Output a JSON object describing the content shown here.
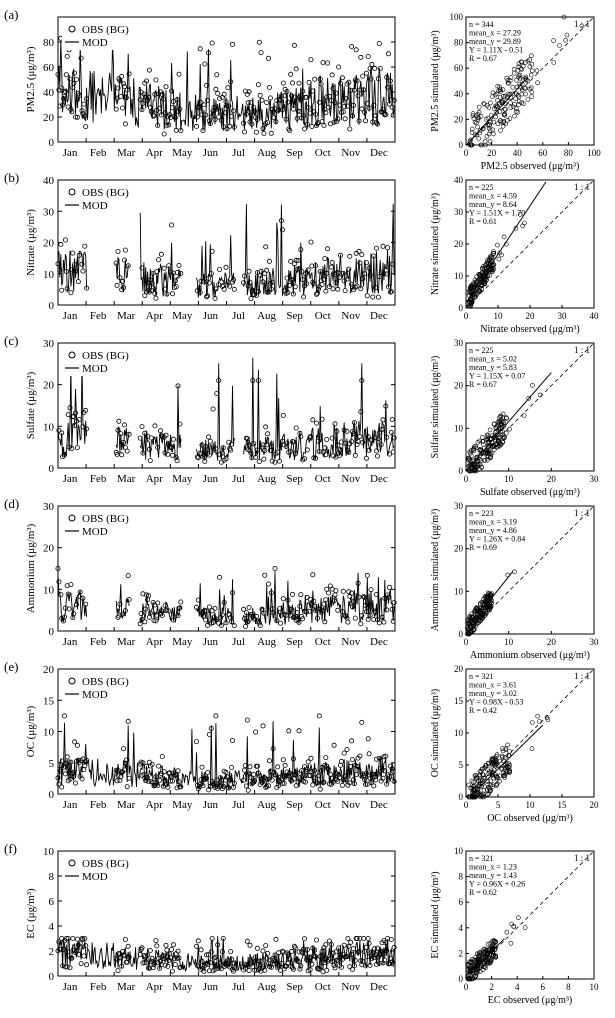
{
  "figure": {
    "months": [
      "Jan",
      "Feb",
      "Mar",
      "Apr",
      "May",
      "Jun",
      "Jul",
      "Aug",
      "Sep",
      "Oct",
      "Nov",
      "Dec"
    ],
    "legend": {
      "obs": "OBS (BG)",
      "mod": "MOD"
    },
    "one_to_one_label": "1 : 1"
  },
  "chart_data": [
    {
      "type": "line",
      "panel": "(a)",
      "ylabel": "PM2.5 (μg/m³)",
      "ylim": [
        0,
        100
      ],
      "yticks": [
        0,
        20,
        40,
        60,
        80
      ],
      "series": [
        {
          "name": "OBS (BG)",
          "kind": "markers",
          "range": [
            5,
            83
          ],
          "mean": 27.29
        },
        {
          "name": "MOD",
          "kind": "line",
          "range": [
            3,
            82
          ],
          "mean": 29.89
        }
      ],
      "scatter": {
        "xlabel": "PM2.5 observed (μg/m³)",
        "ylabel": "PM2.5 simulated (μg/m³)",
        "lim": [
          0,
          100
        ],
        "ticks": [
          0,
          20,
          40,
          60,
          80,
          100
        ],
        "stats": [
          "n = 344",
          "mean_x = 27.29",
          "mean_y = 29.89",
          "Y = 1.11X - 0.51",
          "R = 0.67"
        ],
        "fit": {
          "slope": 1.11,
          "intercept": -0.51,
          "x_end": 45
        }
      }
    },
    {
      "type": "line",
      "panel": "(b)",
      "ylabel": "Nitrate (μg/m³)",
      "ylim": [
        0,
        40
      ],
      "yticks": [
        0,
        10,
        20,
        30,
        40
      ],
      "series": [
        {
          "name": "OBS (BG)",
          "kind": "markers",
          "range": [
            0,
            27
          ],
          "mean": 4.59
        },
        {
          "name": "MOD",
          "kind": "line",
          "range": [
            0,
            33
          ],
          "mean": 8.64
        }
      ],
      "scatter": {
        "xlabel": "Nitrate observed (μg/m³)",
        "ylabel": "Nitrate simulated (μg/m³)",
        "lim": [
          0,
          40
        ],
        "ticks": [
          0,
          10,
          20,
          30,
          40
        ],
        "stats": [
          "n = 225",
          "mean_x = 4.59",
          "mean_y = 8.64",
          "Y = 1.51X + 1.70",
          "R = 0.61"
        ],
        "fit": {
          "slope": 1.51,
          "intercept": 1.7,
          "x_end": 25
        }
      }
    },
    {
      "type": "line",
      "panel": "(c)",
      "ylabel": "Sulfate (μg/m³)",
      "ylim": [
        0,
        30
      ],
      "yticks": [
        0,
        10,
        20,
        30
      ],
      "series": [
        {
          "name": "OBS (BG)",
          "kind": "markers",
          "range": [
            0,
            21
          ],
          "mean": 5.02
        },
        {
          "name": "MOD",
          "kind": "line",
          "range": [
            0,
            26.5
          ],
          "mean": 5.83
        }
      ],
      "scatter": {
        "xlabel": "Sulfate observed (μg/m³)",
        "ylabel": "Sulfate simulated (μg/m³)",
        "lim": [
          0,
          30
        ],
        "ticks": [
          0,
          10,
          20,
          30
        ],
        "stats": [
          "n = 225",
          "mean_x = 5.02",
          "mean_y = 5.83",
          "Y = 1.15X + 0.07",
          "R = 0.67"
        ],
        "fit": {
          "slope": 1.15,
          "intercept": 0.07,
          "x_end": 20
        }
      }
    },
    {
      "type": "line",
      "panel": "(d)",
      "ylabel": "Ammonium (μg/m³)",
      "ylim": [
        0,
        30
      ],
      "yticks": [
        0,
        10,
        20,
        30
      ],
      "series": [
        {
          "name": "OBS (BG)",
          "kind": "markers",
          "range": [
            0,
            15
          ],
          "mean": 3.19
        },
        {
          "name": "MOD",
          "kind": "line",
          "range": [
            0,
            14.5
          ],
          "mean": 4.86
        }
      ],
      "scatter": {
        "xlabel": "Ammonium observed (μg/m³)",
        "ylabel": "Ammonium simulated (μg/m³)",
        "lim": [
          0,
          30
        ],
        "ticks": [
          0,
          10,
          20,
          30
        ],
        "stats": [
          "n = 223",
          "mean_x = 3.19",
          "mean_y = 4.86",
          "Y = 1.26X + 0.84",
          "R = 0.69"
        ],
        "fit": {
          "slope": 1.26,
          "intercept": 0.84,
          "x_end": 11
        }
      }
    },
    {
      "type": "line",
      "panel": "(e)",
      "ylabel": "OC (μg/m³)",
      "ylim": [
        0,
        20
      ],
      "yticks": [
        0,
        5,
        10,
        15,
        20
      ],
      "series": [
        {
          "name": "OBS (BG)",
          "kind": "markers",
          "range": [
            0,
            12.5
          ],
          "mean": 3.61
        },
        {
          "name": "MOD",
          "kind": "line",
          "range": [
            0,
            12
          ],
          "mean": 3.02
        }
      ],
      "scatter": {
        "xlabel": "OC observed (μg/m³)",
        "ylabel": "OC simulated (μg/m³)",
        "lim": [
          0,
          20
        ],
        "ticks": [
          0,
          5,
          10,
          15,
          20
        ],
        "stats": [
          "n = 321",
          "mean_x = 3.61",
          "mean_y = 3.02",
          "Y = 0.98X - 0.53",
          "R = 0.42"
        ],
        "fit": {
          "slope": 0.98,
          "intercept": -0.53,
          "x_end": 12
        }
      }
    },
    {
      "type": "line",
      "panel": "(f)",
      "ylabel": "EC (μg/m³)",
      "ylim": [
        0,
        10
      ],
      "yticks": [
        0,
        2,
        4,
        6,
        8,
        10
      ],
      "series": [
        {
          "name": "OBS (BG)",
          "kind": "markers",
          "range": [
            0,
            3
          ],
          "mean": 1.23
        },
        {
          "name": "MOD",
          "kind": "line",
          "range": [
            0,
            3.2
          ],
          "mean": 1.43
        }
      ],
      "scatter": {
        "xlabel": "EC observed (μg/m³)",
        "ylabel": "EC simulated (μg/m³)",
        "lim": [
          0,
          10
        ],
        "ticks": [
          0,
          2,
          4,
          6,
          8,
          10
        ],
        "stats": [
          "n = 321",
          "mean_x = 1.23",
          "mean_y = 1.43",
          "Y = 0.96X + 0.26",
          "R = 0.62"
        ],
        "fit": {
          "slope": 0.96,
          "intercept": 0.26,
          "x_end": 3
        }
      }
    }
  ]
}
